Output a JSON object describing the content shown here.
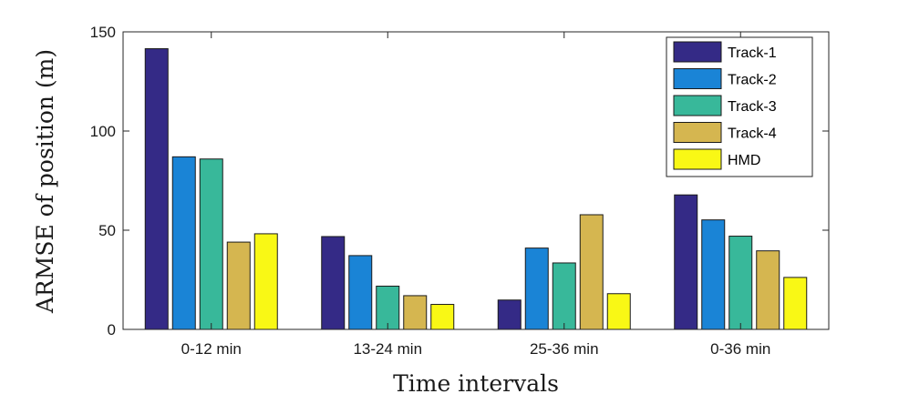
{
  "chart_data": {
    "type": "bar",
    "title": "",
    "xlabel": "Time intervals",
    "ylabel": "ARMSE of position (m)",
    "ylim": [
      0,
      150
    ],
    "yticks": [
      0,
      50,
      100,
      150
    ],
    "categories": [
      "0-12 min",
      "13-24 min",
      "25-36 min",
      "0-36 min"
    ],
    "series": [
      {
        "name": "Track-1",
        "color": "#342A86",
        "values": [
          141.5,
          46.8,
          14.8,
          67.8
        ]
      },
      {
        "name": "Track-2",
        "color": "#1A84D6",
        "values": [
          87.0,
          37.2,
          41.0,
          55.2
        ]
      },
      {
        "name": "Track-3",
        "color": "#38B89A",
        "values": [
          85.9,
          21.8,
          33.5,
          47.0
        ]
      },
      {
        "name": "Track-4",
        "color": "#D5B650",
        "values": [
          44.0,
          17.0,
          57.8,
          39.6
        ]
      },
      {
        "name": "HMD",
        "color": "#F9F815",
        "values": [
          48.2,
          12.6,
          18.0,
          26.2
        ]
      }
    ],
    "legend_position": "top-right",
    "grid": false
  }
}
